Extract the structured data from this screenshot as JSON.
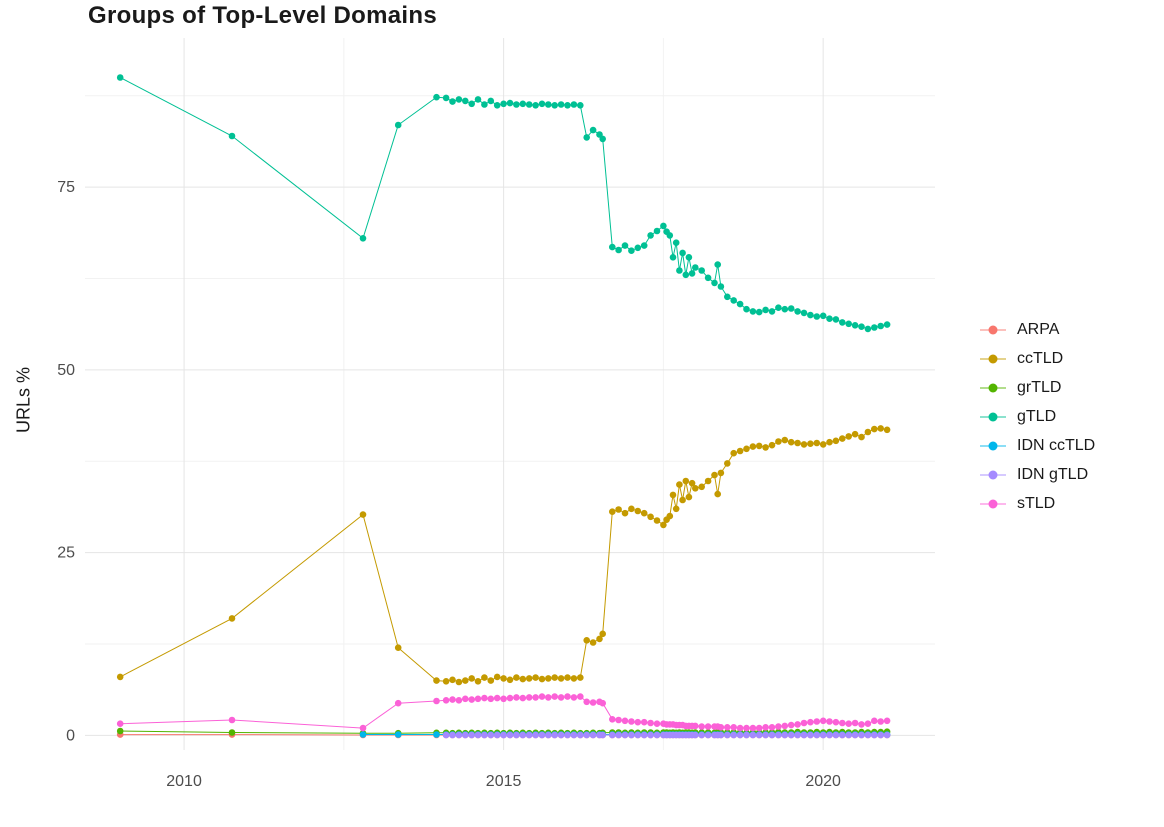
{
  "chart_data": {
    "type": "line",
    "title": "Groups of Top-Level Domains",
    "xlabel": "",
    "ylabel": "URLs %",
    "legend_position": "right",
    "grid": true,
    "background": "#ffffff",
    "grid_major_color": "#e5e5e5",
    "grid_minor_color": "#f2f2f2",
    "axis_text_color": "#4d4d4d",
    "x_domain": [
      2008.45,
      2021.75
    ],
    "y_domain": [
      -2,
      95.4
    ],
    "x_ticks": [
      {
        "value": 2010,
        "label": "2010"
      },
      {
        "value": 2015,
        "label": "2015"
      },
      {
        "value": 2020,
        "label": "2020"
      }
    ],
    "y_ticks": [
      {
        "value": 0,
        "label": "0"
      },
      {
        "value": 25,
        "label": "25"
      },
      {
        "value": 50,
        "label": "50"
      },
      {
        "value": 75,
        "label": "75"
      }
    ],
    "x_minor": [
      2012.5,
      2017.5
    ],
    "y_minor": [
      12.5,
      37.5,
      62.5,
      87.5
    ],
    "x": [
      2009.0,
      2010.75,
      2012.8,
      2013.35,
      2013.95,
      2014.1,
      2014.2,
      2014.3,
      2014.4,
      2014.5,
      2014.6,
      2014.7,
      2014.8,
      2014.9,
      2015.0,
      2015.1,
      2015.2,
      2015.3,
      2015.4,
      2015.5,
      2015.6,
      2015.7,
      2015.8,
      2015.9,
      2016.0,
      2016.1,
      2016.2,
      2016.3,
      2016.4,
      2016.5,
      2016.55,
      2016.7,
      2016.8,
      2016.9,
      2017.0,
      2017.1,
      2017.2,
      2017.3,
      2017.4,
      2017.5,
      2017.55,
      2017.6,
      2017.65,
      2017.7,
      2017.75,
      2017.8,
      2017.85,
      2017.9,
      2017.95,
      2018.0,
      2018.1,
      2018.2,
      2018.3,
      2018.35,
      2018.4,
      2018.5,
      2018.6,
      2018.7,
      2018.8,
      2018.9,
      2019.0,
      2019.1,
      2019.2,
      2019.3,
      2019.4,
      2019.5,
      2019.6,
      2019.7,
      2019.8,
      2019.9,
      2020.0,
      2020.1,
      2020.2,
      2020.3,
      2020.4,
      2020.5,
      2020.6,
      2020.7,
      2020.8,
      2020.9,
      2021.0
    ],
    "series": [
      {
        "name": "ARPA",
        "color": "#F8766D",
        "values": [
          0.1,
          0.1,
          0.05,
          0.05,
          0.05,
          0.05,
          0.05,
          0.05,
          0.05,
          0.05,
          0.05,
          0.05,
          0.05,
          0.05,
          0.05,
          0.05,
          0.05,
          0.05,
          0.05,
          0.05,
          0.05,
          0.05,
          0.05,
          0.05,
          0.05,
          0.05,
          0.05,
          0.05,
          0.05,
          0.05,
          0.05,
          0.05,
          0.05,
          0.05,
          0.05,
          0.05,
          0.05,
          0.05,
          0.05,
          0.05,
          0.05,
          0.05,
          0.05,
          0.05,
          0.05,
          0.05,
          0.05,
          0.05,
          0.05,
          0.05,
          0.05,
          0.05,
          0.05,
          0.05,
          0.05,
          0.05,
          0.05,
          0.05,
          0.05,
          0.05,
          0.05,
          0.05,
          0.05,
          0.05,
          0.05,
          0.05,
          0.05,
          0.05,
          0.05,
          0.05,
          0.05,
          0.05,
          0.05,
          0.05,
          0.05,
          0.05,
          0.05,
          0.05,
          0.05,
          0.05,
          0.05
        ]
      },
      {
        "name": "ccTLD",
        "color": "#C49A00",
        "values": [
          8.0,
          16.0,
          30.2,
          12.0,
          7.5,
          7.4,
          7.6,
          7.3,
          7.5,
          7.8,
          7.4,
          7.9,
          7.5,
          8.0,
          7.8,
          7.6,
          7.9,
          7.7,
          7.8,
          7.9,
          7.7,
          7.8,
          7.9,
          7.8,
          7.9,
          7.8,
          7.9,
          13.0,
          12.7,
          13.2,
          13.9,
          30.6,
          30.9,
          30.4,
          31.0,
          30.7,
          30.4,
          29.9,
          29.4,
          28.8,
          29.5,
          30.0,
          32.9,
          31.0,
          34.3,
          32.2,
          34.8,
          32.6,
          34.5,
          33.8,
          34.0,
          34.8,
          35.6,
          33.0,
          35.9,
          37.2,
          38.6,
          38.9,
          39.2,
          39.5,
          39.6,
          39.4,
          39.7,
          40.2,
          40.4,
          40.1,
          40.0,
          39.8,
          39.9,
          40.0,
          39.8,
          40.1,
          40.3,
          40.6,
          40.9,
          41.2,
          40.8,
          41.5,
          41.9,
          42.0,
          41.8
        ]
      },
      {
        "name": "grTLD",
        "color": "#53B400",
        "values": [
          0.6,
          0.4,
          0.3,
          0.3,
          0.35,
          0.35,
          0.3,
          0.35,
          0.3,
          0.35,
          0.3,
          0.35,
          0.3,
          0.35,
          0.3,
          0.35,
          0.3,
          0.35,
          0.3,
          0.35,
          0.3,
          0.35,
          0.3,
          0.35,
          0.3,
          0.35,
          0.3,
          0.3,
          0.35,
          0.3,
          0.35,
          0.4,
          0.4,
          0.35,
          0.4,
          0.35,
          0.4,
          0.4,
          0.35,
          0.4,
          0.4,
          0.35,
          0.4,
          0.35,
          0.4,
          0.35,
          0.4,
          0.4,
          0.35,
          0.4,
          0.4,
          0.4,
          0.35,
          0.4,
          0.4,
          0.4,
          0.4,
          0.4,
          0.35,
          0.4,
          0.4,
          0.4,
          0.4,
          0.45,
          0.4,
          0.4,
          0.45,
          0.4,
          0.4,
          0.45,
          0.4,
          0.45,
          0.4,
          0.45,
          0.4,
          0.4,
          0.45,
          0.4,
          0.45,
          0.45,
          0.5
        ]
      },
      {
        "name": "gTLD",
        "color": "#00C094",
        "values": [
          90.0,
          82.0,
          68.0,
          83.5,
          87.3,
          87.2,
          86.7,
          87.0,
          86.8,
          86.4,
          87.0,
          86.3,
          86.8,
          86.2,
          86.4,
          86.5,
          86.3,
          86.4,
          86.3,
          86.2,
          86.4,
          86.3,
          86.2,
          86.3,
          86.2,
          86.3,
          86.2,
          81.8,
          82.8,
          82.2,
          81.6,
          66.8,
          66.4,
          67.0,
          66.3,
          66.7,
          67.0,
          68.4,
          69.0,
          69.7,
          68.9,
          68.4,
          65.4,
          67.4,
          63.6,
          66.0,
          63.0,
          65.4,
          63.2,
          64.0,
          63.6,
          62.6,
          61.9,
          64.4,
          61.4,
          60.0,
          59.5,
          59.0,
          58.3,
          58.0,
          57.9,
          58.2,
          58.0,
          58.5,
          58.3,
          58.4,
          58.0,
          57.8,
          57.5,
          57.3,
          57.4,
          57.0,
          56.9,
          56.5,
          56.3,
          56.1,
          55.9,
          55.6,
          55.8,
          56.0,
          56.2
        ]
      },
      {
        "name": "IDN ccTLD",
        "color": "#00B6EB",
        "values": [
          null,
          null,
          0.12,
          0.12,
          0.12,
          0.12,
          0.12,
          0.12,
          0.12,
          0.12,
          0.12,
          0.12,
          0.12,
          0.12,
          0.12,
          0.12,
          0.12,
          0.12,
          0.12,
          0.12,
          0.12,
          0.12,
          0.12,
          0.12,
          0.12,
          0.12,
          0.12,
          0.12,
          0.12,
          0.12,
          0.12,
          0.12,
          0.12,
          0.12,
          0.12,
          0.12,
          0.12,
          0.12,
          0.12,
          0.12,
          0.12,
          0.12,
          0.12,
          0.12,
          0.12,
          0.12,
          0.12,
          0.12,
          0.12,
          0.12,
          0.12,
          0.12,
          0.12,
          0.12,
          0.12,
          0.12,
          0.12,
          0.12,
          0.12,
          0.12,
          0.12,
          0.12,
          0.12,
          0.12,
          0.12,
          0.12,
          0.12,
          0.12,
          0.12,
          0.12,
          0.12,
          0.12,
          0.12,
          0.12,
          0.12,
          0.12,
          0.12,
          0.12,
          0.12,
          0.12,
          0.12
        ]
      },
      {
        "name": "IDN gTLD",
        "color": "#A58AFF",
        "values": [
          null,
          null,
          null,
          null,
          null,
          0.05,
          0.05,
          0.05,
          0.05,
          0.05,
          0.05,
          0.05,
          0.05,
          0.05,
          0.05,
          0.05,
          0.05,
          0.05,
          0.05,
          0.05,
          0.05,
          0.05,
          0.05,
          0.05,
          0.05,
          0.05,
          0.05,
          0.05,
          0.05,
          0.05,
          0.05,
          0.05,
          0.05,
          0.05,
          0.05,
          0.05,
          0.05,
          0.05,
          0.05,
          0.05,
          0.05,
          0.05,
          0.05,
          0.05,
          0.05,
          0.05,
          0.05,
          0.05,
          0.05,
          0.05,
          0.05,
          0.05,
          0.05,
          0.05,
          0.05,
          0.05,
          0.05,
          0.05,
          0.05,
          0.05,
          0.05,
          0.05,
          0.05,
          0.05,
          0.05,
          0.05,
          0.05,
          0.05,
          0.05,
          0.05,
          0.05,
          0.05,
          0.05,
          0.05,
          0.05,
          0.05,
          0.05,
          0.05,
          0.05,
          0.05,
          0.05
        ]
      },
      {
        "name": "sTLD",
        "color": "#FB61D7",
        "values": [
          1.6,
          2.1,
          1.0,
          4.4,
          4.7,
          4.8,
          4.9,
          4.8,
          5.0,
          4.9,
          5.0,
          5.1,
          5.0,
          5.1,
          5.0,
          5.1,
          5.2,
          5.1,
          5.2,
          5.2,
          5.3,
          5.2,
          5.3,
          5.2,
          5.3,
          5.2,
          5.3,
          4.6,
          4.5,
          4.6,
          4.4,
          2.2,
          2.1,
          2.0,
          1.9,
          1.8,
          1.8,
          1.7,
          1.6,
          1.6,
          1.5,
          1.5,
          1.5,
          1.4,
          1.4,
          1.4,
          1.3,
          1.3,
          1.3,
          1.3,
          1.2,
          1.2,
          1.2,
          1.2,
          1.1,
          1.1,
          1.1,
          1.0,
          1.0,
          1.0,
          1.0,
          1.1,
          1.1,
          1.2,
          1.3,
          1.4,
          1.5,
          1.7,
          1.8,
          1.9,
          2.0,
          1.9,
          1.8,
          1.7,
          1.6,
          1.7,
          1.5,
          1.6,
          2.0,
          1.9,
          2.0
        ]
      }
    ]
  }
}
